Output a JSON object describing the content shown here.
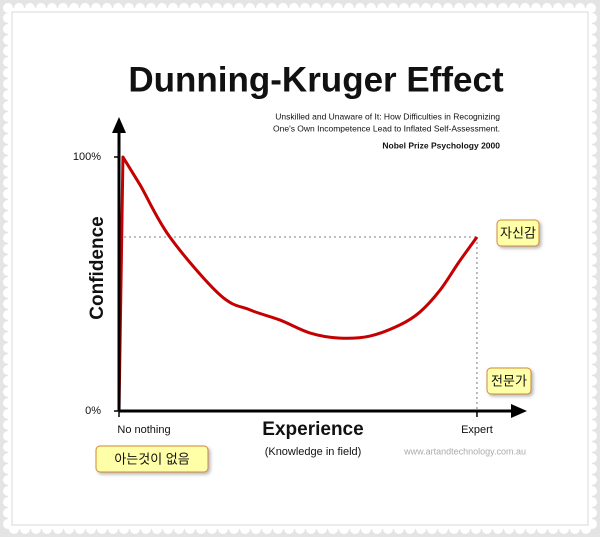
{
  "chart_data": {
    "type": "line",
    "title": "Dunning-Kruger Effect",
    "subtitle_lines": [
      "Unskilled and Unaware of It: How Difficulties in Recognizing",
      "One's Own Incompetence Lead to Inflated Self-Assessment."
    ],
    "source": "Nobel Prize Psychology  2000",
    "xlabel": "Experience",
    "xlabel_note": "(Knowledge in field)",
    "ylabel": "Confidence",
    "watermark": "www.artandtechnology.com.au",
    "annotations": [
      "자신감",
      "전문가",
      "아는것이 없음"
    ],
    "color": "#c40000",
    "x": [
      0,
      1.1,
      5.9,
      14.2,
      28.2,
      36.6,
      45,
      53.4,
      61.7,
      70.1,
      78.5,
      84.1,
      89.7,
      95,
      100
    ],
    "values": [
      0,
      100,
      89,
      68.5,
      45.7,
      39.8,
      35.8,
      30.7,
      28.7,
      29.5,
      33.9,
      39,
      47.6,
      58.7,
      68.5
    ],
    "xlim": [
      0,
      113
    ],
    "ylim": [
      0,
      115
    ],
    "xticks": [
      {
        "value": 0,
        "label": "No nothing"
      },
      {
        "value": 100,
        "label": "Expert"
      }
    ],
    "yticks": [
      {
        "value": 0,
        "label": "0%"
      },
      {
        "value": 100,
        "label": "100%"
      }
    ]
  }
}
